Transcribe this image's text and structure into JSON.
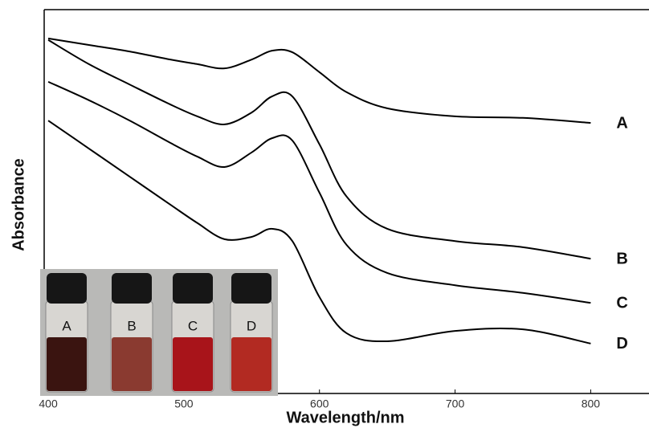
{
  "chart_data": {
    "type": "line",
    "x_label": "Wavelength/nm",
    "y_label": "Absorbance",
    "x": [
      400,
      430,
      460,
      490,
      510,
      530,
      550,
      565,
      580,
      600,
      620,
      650,
      700,
      750,
      800
    ],
    "series": [
      {
        "name": "A",
        "color": "#000000",
        "values": [
          92.5,
          90.8,
          89.1,
          87.0,
          85.8,
          84.7,
          87.0,
          89.3,
          88.9,
          83.7,
          78.5,
          74.3,
          72.2,
          71.8,
          70.5
        ]
      },
      {
        "name": "B",
        "color": "#000000",
        "values": [
          92.1,
          85.8,
          80.5,
          75.3,
          72.2,
          70.1,
          73.2,
          77.4,
          77.4,
          64.9,
          51.3,
          42.9,
          39.7,
          38.1,
          35.1
        ]
      },
      {
        "name": "C",
        "color": "#000000",
        "values": [
          81.2,
          76.4,
          71.1,
          65.3,
          61.7,
          59.0,
          62.8,
          66.5,
          65.9,
          52.3,
          38.7,
          31.4,
          28.2,
          26.2,
          23.6
        ]
      },
      {
        "name": "D",
        "color": "#000000",
        "values": [
          71.1,
          63.8,
          56.5,
          49.2,
          44.4,
          40.2,
          40.8,
          42.9,
          39.7,
          25.1,
          15.7,
          13.6,
          16.3,
          16.7,
          13.0
        ]
      }
    ],
    "xlim": [
      397,
      843
    ],
    "ylim": [
      0,
      100
    ],
    "xticks": [
      400,
      500,
      600,
      700,
      800
    ],
    "inset_labels": [
      "A",
      "B",
      "C",
      "D"
    ]
  }
}
